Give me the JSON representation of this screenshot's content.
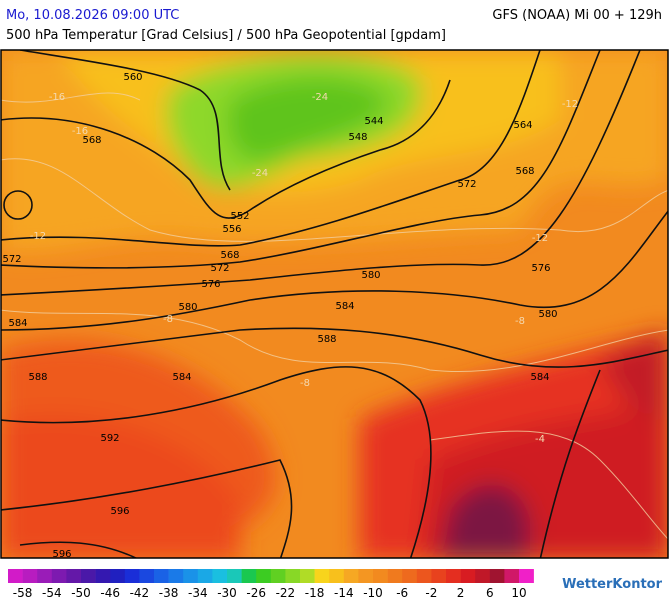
{
  "header": {
    "datetime": "Mo, 10.08.2026 09:00 UTC",
    "model": "GFS (NOAA) Mi 00 + 129h",
    "title": "500 hPa Temperatur [Grad Celsius] / 500 hPa Geopotential [gpdam]"
  },
  "map": {
    "geopotential_labels": [
      "560",
      "568",
      "572",
      "584",
      "588",
      "592",
      "596",
      "596",
      "552",
      "556",
      "568",
      "572",
      "576",
      "580",
      "584",
      "548",
      "544",
      "564",
      "568",
      "572",
      "576",
      "580",
      "580",
      "584",
      "588",
      "584"
    ],
    "temperature_labels": [
      "-24",
      "-24",
      "-16",
      "-16",
      "-12",
      "-12",
      "-12",
      "-8",
      "-8",
      "-8",
      "-4"
    ]
  },
  "legend": {
    "labels": [
      "-58",
      "-54",
      "-50",
      "-46",
      "-42",
      "-38",
      "-34",
      "-30",
      "-26",
      "-22",
      "-18",
      "-14",
      "-10",
      "-6",
      "-2",
      "2",
      "6",
      "10"
    ]
  },
  "logo": "WetterKontor"
}
